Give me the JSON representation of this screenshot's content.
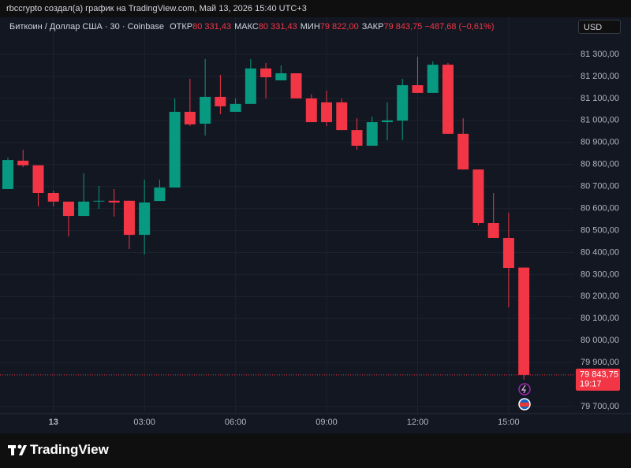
{
  "attribution": "rbccrypto создал(а) график на TradingView.com, Май 13, 2026 15:40 UTC+3",
  "brand": "TradingView",
  "chart_data": {
    "type": "candlestick",
    "title": "Биткоин / Доллар США · 30 · Coinbase",
    "ohlc_legend": [
      {
        "label": "ОТКР",
        "value": "80 331,43"
      },
      {
        "label": "МАКС",
        "value": "80 331,43"
      },
      {
        "label": "МИН",
        "value": "79 822,00"
      },
      {
        "label": "ЗАКР",
        "value": "79 843,75"
      }
    ],
    "change": "−487,68 (−0,61%)",
    "currency": "USD",
    "last_price_label": "79 843,75",
    "countdown": "19:17",
    "up_color": "#089981",
    "down_color": "#f23645",
    "grid": true,
    "categories": [
      null,
      null,
      null,
      "13",
      null,
      null,
      null,
      null,
      null,
      "03:00",
      null,
      null,
      null,
      null,
      null,
      "06:00",
      null,
      null,
      null,
      null,
      null,
      "09:00",
      null,
      null,
      null,
      null,
      null,
      "12:00",
      null,
      null,
      null,
      null,
      null,
      "15:00",
      null
    ],
    "open": [
      80688,
      80817,
      80796,
      80670,
      80631,
      80566,
      80635,
      80635,
      80635,
      80480,
      80634,
      80695,
      81039,
      80985,
      81107,
      81039,
      81075,
      81236,
      81182,
      81214,
      81100,
      81082,
      81082,
      80956,
      80885,
      80992,
      80999,
      81160,
      81125,
      81253,
      80939,
      80777,
      80534,
      80466,
      80331.43
    ],
    "high": [
      80831,
      80867,
      80796,
      80681,
      80631,
      80760,
      80702,
      80688,
      80635,
      80731,
      80731,
      81100,
      81189,
      81279,
      81207,
      81100,
      81279,
      81261,
      81250,
      81214,
      81118,
      81135,
      81100,
      81010,
      81017,
      81082,
      81189,
      81289,
      81268,
      81261,
      81010,
      80777,
      80670,
      80581,
      80331.43
    ],
    "low": [
      80688,
      80788,
      80609,
      80609,
      80473,
      80566,
      80598,
      80563,
      80416,
      80391,
      80634,
      80695,
      80974,
      80931,
      81028,
      81039,
      81075,
      81100,
      81182,
      81100,
      80992,
      80974,
      80956,
      80867,
      80885,
      80910,
      80910,
      81125,
      81125,
      80939,
      80777,
      80523,
      80466,
      80151,
      79822
    ],
    "close": [
      80820,
      80796,
      80670,
      80631,
      80566,
      80631,
      80635,
      80627,
      80480,
      80627,
      80695,
      81039,
      80982,
      81107,
      81064,
      81075,
      81236,
      81196,
      81214,
      81100,
      80992,
      80992,
      80956,
      80885,
      80992,
      81000,
      81160,
      81125,
      81253,
      80939,
      80777,
      80534,
      80466,
      80330,
      79843.75
    ],
    "ylim": [
      79700,
      81300
    ],
    "yticks": [
      {
        "value": 79700,
        "label": "79 700,00"
      },
      {
        "value": 79900,
        "label": "79 900,00"
      },
      {
        "value": 80000,
        "label": "80 000,00"
      },
      {
        "value": 80100,
        "label": "80 100,00"
      },
      {
        "value": 80200,
        "label": "80 200,00"
      },
      {
        "value": 80300,
        "label": "80 300,00"
      },
      {
        "value": 80400,
        "label": "80 400,00"
      },
      {
        "value": 80500,
        "label": "80 500,00"
      },
      {
        "value": 80600,
        "label": "80 600,00"
      },
      {
        "value": 80700,
        "label": "80 700,00"
      },
      {
        "value": 80800,
        "label": "80 800,00"
      },
      {
        "value": 80900,
        "label": "80 900,00"
      },
      {
        "value": 81000,
        "label": "81 000,00"
      },
      {
        "value": 81100,
        "label": "81 100,00"
      },
      {
        "value": 81200,
        "label": "81 200,00"
      },
      {
        "value": 81300,
        "label": "81 300,00"
      }
    ]
  }
}
